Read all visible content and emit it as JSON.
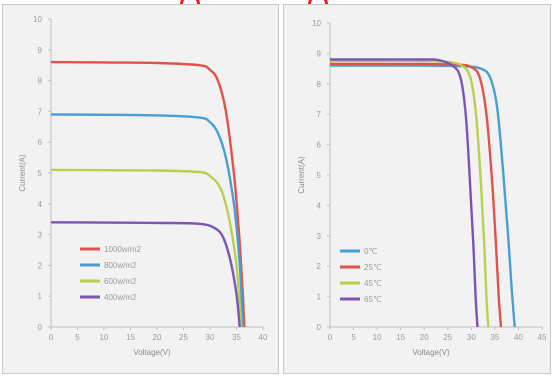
{
  "chart_data": [
    {
      "type": "line",
      "title": "",
      "xlabel": "Voltage(V)",
      "ylabel": "Current(A)",
      "xlim": [
        0,
        40
      ],
      "ylim": [
        0,
        10
      ],
      "xticks": [
        "0",
        "5",
        "10",
        "15",
        "20",
        "25",
        "30",
        "35",
        "40"
      ],
      "yticks": [
        "0",
        "1",
        "2",
        "3",
        "4",
        "5",
        "6",
        "7",
        "8",
        "9",
        "10"
      ],
      "grid": false,
      "legend": "bottom-left",
      "series": [
        {
          "name": "1000w/m2",
          "color": "#e0534a",
          "isc": 8.6,
          "voc": 36.5,
          "knee": 31.5,
          "x": [
            0,
            10,
            20,
            28,
            30,
            31.5,
            33,
            34.5,
            35.5,
            36.2,
            36.5
          ],
          "y": [
            8.6,
            8.59,
            8.57,
            8.5,
            8.35,
            8.0,
            7.0,
            5.0,
            3.0,
            1.0,
            0
          ]
        },
        {
          "name": "800w/m2",
          "color": "#4a9ed6",
          "isc": 6.9,
          "voc": 36.2,
          "knee": 31.5,
          "x": [
            0,
            10,
            20,
            28,
            30,
            31.5,
            33,
            34.5,
            35.5,
            36.0,
            36.2
          ],
          "y": [
            6.9,
            6.89,
            6.87,
            6.8,
            6.65,
            6.3,
            5.5,
            4.0,
            2.3,
            0.8,
            0
          ]
        },
        {
          "name": "600w/m2",
          "color": "#b9cf4e",
          "isc": 5.1,
          "voc": 35.9,
          "knee": 32,
          "x": [
            0,
            10,
            20,
            28,
            30,
            32,
            33.5,
            34.8,
            35.5,
            35.9
          ],
          "y": [
            5.1,
            5.09,
            5.08,
            5.03,
            4.9,
            4.5,
            3.6,
            2.3,
            1.0,
            0
          ]
        },
        {
          "name": "400w/m2",
          "color": "#7a56b5",
          "isc": 3.4,
          "voc": 35.6,
          "knee": 32.5,
          "x": [
            0,
            10,
            20,
            28,
            31,
            32.5,
            33.8,
            34.8,
            35.3,
            35.6
          ],
          "y": [
            3.4,
            3.39,
            3.38,
            3.35,
            3.2,
            2.9,
            2.2,
            1.3,
            0.6,
            0
          ]
        }
      ]
    },
    {
      "type": "line",
      "title": "",
      "xlabel": "Voltage(V)",
      "ylabel": "Current(A)",
      "xlim": [
        0,
        45
      ],
      "ylim": [
        0,
        10
      ],
      "xticks": [
        "0",
        "5",
        "10",
        "15",
        "20",
        "25",
        "30",
        "35",
        "40",
        "45"
      ],
      "yticks": [
        "0",
        "1",
        "2",
        "3",
        "4",
        "5",
        "6",
        "7",
        "8",
        "9",
        "10"
      ],
      "grid": false,
      "legend": "bottom-left",
      "series": [
        {
          "name": "0℃",
          "color": "#4a9ed6",
          "x": [
            0,
            10,
            20,
            28,
            32,
            34,
            35.5,
            36.8,
            37.8,
            38.6,
            39.2
          ],
          "y": [
            8.6,
            8.6,
            8.6,
            8.58,
            8.5,
            8.2,
            7.2,
            5.0,
            3.0,
            1.2,
            0
          ]
        },
        {
          "name": "25℃",
          "color": "#e0534a",
          "x": [
            0,
            10,
            20,
            27,
            30,
            31.8,
            33.2,
            34.4,
            35.2,
            35.8,
            36.3
          ],
          "y": [
            8.65,
            8.65,
            8.65,
            8.63,
            8.55,
            8.2,
            7.0,
            4.8,
            2.8,
            1.0,
            0
          ]
        },
        {
          "name": "45℃",
          "color": "#b9cf4e",
          "x": [
            0,
            10,
            20,
            25,
            28,
            29.8,
            31.0,
            32.0,
            32.7,
            33.2,
            33.6
          ],
          "y": [
            8.75,
            8.75,
            8.75,
            8.72,
            8.6,
            8.2,
            7.0,
            4.8,
            2.8,
            1.0,
            0
          ]
        },
        {
          "name": "65℃",
          "color": "#7a56b5",
          "x": [
            0,
            10,
            20,
            23,
            26,
            27.7,
            28.8,
            29.7,
            30.4,
            30.9,
            31.3
          ],
          "y": [
            8.8,
            8.8,
            8.8,
            8.78,
            8.6,
            8.2,
            7.0,
            4.8,
            2.8,
            1.0,
            0
          ]
        }
      ]
    }
  ]
}
